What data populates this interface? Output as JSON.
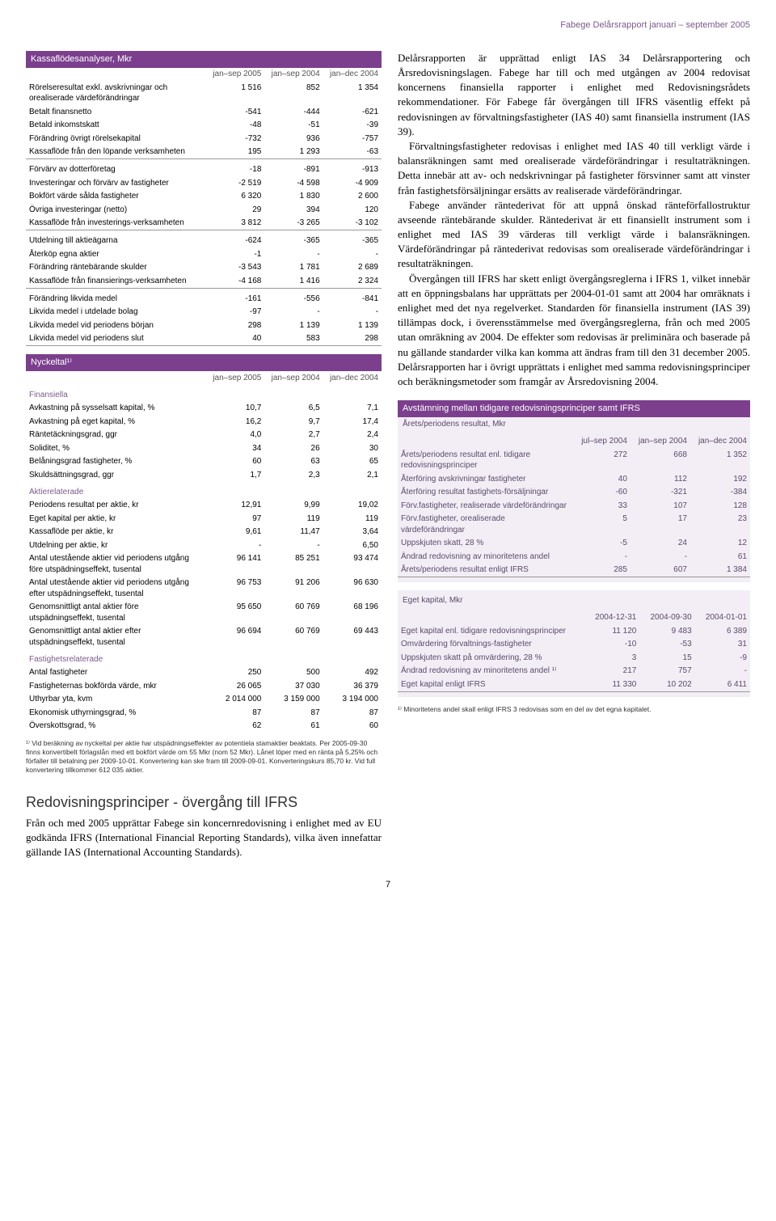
{
  "header": "Fabege Delårsrapport januari – september 2005",
  "page_number": "7",
  "cashflow": {
    "title": "Kassaflödesanalyser, Mkr",
    "cols": [
      "jan–sep 2005",
      "jan–sep 2004",
      "jan–dec 2004"
    ],
    "rows": [
      {
        "label": "Rörelseresultat exkl. avskrivningar och orealiserade värdeförändringar",
        "v": [
          "1 516",
          "852",
          "1 354"
        ]
      },
      {
        "label": "Betalt finansnetto",
        "v": [
          "-541",
          "-444",
          "-621"
        ]
      },
      {
        "label": "Betald inkomstskatt",
        "v": [
          "-48",
          "-51",
          "-39"
        ]
      },
      {
        "label": "Förändring övrigt rörelsekapital",
        "v": [
          "-732",
          "936",
          "-757"
        ]
      },
      {
        "label": "Kassaflöde från den löpande verksamheten",
        "v": [
          "195",
          "1 293",
          "-63"
        ],
        "rule": true
      },
      {
        "label": "Förvärv av dotterföretag",
        "v": [
          "-18",
          "-891",
          "-913"
        ],
        "gap": true
      },
      {
        "label": "Investeringar och förvärv av fastigheter",
        "v": [
          "-2 519",
          "-4 598",
          "-4 909"
        ]
      },
      {
        "label": "Bokfört värde sålda fastigheter",
        "v": [
          "6 320",
          "1 830",
          "2 600"
        ]
      },
      {
        "label": "Övriga investeringar (netto)",
        "v": [
          "29",
          "394",
          "120"
        ]
      },
      {
        "label": "Kassaflöde från investerings-verksamheten",
        "v": [
          "3 812",
          "-3 265",
          "-3 102"
        ],
        "rule": true
      },
      {
        "label": "Utdelning till aktieägarna",
        "v": [
          "-624",
          "-365",
          "-365"
        ],
        "gap": true
      },
      {
        "label": "Återköp egna aktier",
        "v": [
          "-1",
          "-",
          "-"
        ]
      },
      {
        "label": "Förändring räntebärande skulder",
        "v": [
          "-3 543",
          "1 781",
          "2 689"
        ]
      },
      {
        "label": "Kassaflöde från finansierings-verksamheten",
        "v": [
          "-4 168",
          "1 416",
          "2 324"
        ],
        "rule": true
      },
      {
        "label": "Förändring likvida medel",
        "v": [
          "-161",
          "-556",
          "-841"
        ],
        "gap": true
      },
      {
        "label": "Likvida medel i utdelade bolag",
        "v": [
          "-97",
          "-",
          "-"
        ]
      },
      {
        "label": "Likvida medel vid periodens början",
        "v": [
          "298",
          "1 139",
          "1 139"
        ]
      },
      {
        "label": "Likvida medel vid periodens slut",
        "v": [
          "40",
          "583",
          "298"
        ],
        "rule": true
      }
    ]
  },
  "ratios": {
    "title": "Nyckeltal¹⁾",
    "cols": [
      "jan–sep 2005",
      "jan–sep 2004",
      "jan–dec 2004"
    ],
    "groups": [
      {
        "head": "Finansiella",
        "rows": [
          {
            "label": "Avkastning på sysselsatt kapital, %",
            "v": [
              "10,7",
              "6,5",
              "7,1"
            ]
          },
          {
            "label": "Avkastning på eget kapital, %",
            "v": [
              "16,2",
              "9,7",
              "17,4"
            ]
          },
          {
            "label": "Räntetäckningsgrad, ggr",
            "v": [
              "4,0",
              "2,7",
              "2,4"
            ]
          },
          {
            "label": "Soliditet, %",
            "v": [
              "34",
              "26",
              "30"
            ]
          },
          {
            "label": "Belåningsgrad fastigheter, %",
            "v": [
              "60",
              "63",
              "65"
            ]
          },
          {
            "label": "Skuldsättningsgrad, ggr",
            "v": [
              "1,7",
              "2,3",
              "2,1"
            ]
          }
        ]
      },
      {
        "head": "Aktierelaterade",
        "rows": [
          {
            "label": "Periodens resultat per aktie, kr",
            "v": [
              "12,91",
              "9,99",
              "19,02"
            ]
          },
          {
            "label": "Eget kapital per aktie, kr",
            "v": [
              "97",
              "119",
              "119"
            ]
          },
          {
            "label": "Kassaflöde per aktie, kr",
            "v": [
              "9,61",
              "11,47",
              "3,64"
            ]
          },
          {
            "label": "Utdelning per aktie, kr",
            "v": [
              "-",
              "-",
              "6,50"
            ]
          },
          {
            "label": "Antal utestående aktier vid periodens utgång före utspädningseffekt, tusental",
            "v": [
              "96 141",
              "85 251",
              "93 474"
            ]
          },
          {
            "label": "Antal utestående aktier vid periodens utgång efter utspädningseffekt, tusental",
            "v": [
              "96 753",
              "91 206",
              "96 630"
            ]
          },
          {
            "label": "Genomsnittligt antal aktier före utspädningseffekt, tusental",
            "v": [
              "95 650",
              "60 769",
              "68 196"
            ]
          },
          {
            "label": "Genomsnittligt antal aktier efter utspädningseffekt, tusental",
            "v": [
              "96 694",
              "60 769",
              "69 443"
            ]
          }
        ]
      },
      {
        "head": "Fastighetsrelaterade",
        "rows": [
          {
            "label": "Antal fastigheter",
            "v": [
              "250",
              "500",
              "492"
            ]
          },
          {
            "label": "Fastigheternas bokförda värde, mkr",
            "v": [
              "26 065",
              "37 030",
              "36 379"
            ]
          },
          {
            "label": "Uthyrbar yta, kvm",
            "v": [
              "2 014 000",
              "3 159 000",
              "3 194 000"
            ]
          },
          {
            "label": "Ekonomisk uthyrningsgrad, %",
            "v": [
              "87",
              "87",
              "87"
            ]
          },
          {
            "label": "Överskottsgrad, %",
            "v": [
              "62",
              "61",
              "60"
            ]
          }
        ]
      }
    ],
    "footnote": "¹⁾ Vid beräkning av nyckeltal per aktie har utspädningseffekter av potentiela stamaktier beaktats. Per 2005-09-30 finns konvertibelt förlagslån med ett bokfört värde om 55 Mkr (nom 52 Mkr). Lånet löper med en ränta på 5,25% och förfaller till betalning per 2009-10-01. Konvertering kan ske fram till 2009-09-01. Konverteringskurs 85,70 kr. Vid full konvertering tillkommer 612 035 aktier."
  },
  "ifrs_heading": "Redovisningsprinciper - övergång till IFRS",
  "ifrs_intro": "Från och med 2005 upprättar Fabege sin koncernredovisning i enlighet med av EU godkända IFRS (International Financial Reporting Standards), vilka även innefattar gällande IAS (International Accounting Standards).",
  "right_text": [
    "Delårsrapporten är upprättad enligt IAS 34 Delårsrapportering och Årsredovisningslagen. Fabege har till och med utgången av 2004 redovisat koncernens finansiella rapporter i enlighet med Redovisningsrådets rekommendationer. För Fabege får övergången till IFRS väsentlig effekt på redovisningen av förvaltningsfastigheter (IAS 40) samt finansiella instrument (IAS 39).",
    "Förvaltningsfastigheter redovisas i enlighet med IAS 40 till verkligt värde i balansräkningen samt med orealiserade värdeförändringar i resultaträkningen. Detta innebär att av- och nedskrivningar på fastigheter försvinner samt att vinster från fastighetsförsäljningar ersätts av realiserade värdeförändringar.",
    "Fabege använder räntederivat för att uppnå önskad ränteförfallostruktur avseende räntebärande skulder. Räntederivat är ett finansiellt instrument som i enlighet med IAS 39 värderas till verkligt värde i balansräkningen. Värdeförändringar på räntederivat redovisas som orealiserade värdeförändringar i resultaträkningen.",
    "Övergången till IFRS har skett enligt övergångsreglerna i IFRS 1, vilket innebär att en öppningsbalans har upprättats per 2004-01-01 samt att 2004 har omräknats i enlighet med det nya regelverket. Standarden för finansiella instrument (IAS 39) tillämpas dock, i överensstämmelse med övergångsreglerna, från och med 2005 utan omräkning av 2004. De effekter som redovisas är preliminära och baserade på nu gällande standarder vilka kan komma att ändras fram till den 31 december 2005. Delårsrapporten har i övrigt upprättats i enlighet med samma redovisningsprinciper och beräkningsmetoder som framgår av Årsredovisning 2004."
  ],
  "reconcile": {
    "title": "Avstämning mellan tidigare redovisningsprinciper samt IFRS",
    "sub1": {
      "subtitle": "Årets/periodens resultat, Mkr",
      "cols": [
        "jul–sep 2004",
        "jan–sep 2004",
        "jan–dec 2004"
      ],
      "rows": [
        {
          "label": "Årets/periodens resultat enl. tidigare redovisningsprinciper",
          "v": [
            "272",
            "668",
            "1 352"
          ]
        },
        {
          "label": "Återföring avskrivningar fastigheter",
          "v": [
            "40",
            "112",
            "192"
          ]
        },
        {
          "label": "Återföring resultat fastighets-försäljningar",
          "v": [
            "-60",
            "-321",
            "-384"
          ]
        },
        {
          "label": "Förv.fastigheter, realiserade värdeförändringar",
          "v": [
            "33",
            "107",
            "128"
          ]
        },
        {
          "label": "Förv.fastigheter, orealiserade värdeförändringar",
          "v": [
            "5",
            "17",
            "23"
          ]
        },
        {
          "label": "Uppskjuten skatt, 28 %",
          "v": [
            "-5",
            "24",
            "12"
          ]
        },
        {
          "label": "Ändrad redovisning av minoritetens andel",
          "v": [
            "-",
            "-",
            "61"
          ]
        },
        {
          "label": "Årets/periodens resultat enligt IFRS",
          "v": [
            "285",
            "607",
            "1 384"
          ],
          "rule": true
        }
      ]
    },
    "sub2": {
      "subtitle": "Eget kapital, Mkr",
      "cols": [
        "2004-12-31",
        "2004-09-30",
        "2004-01-01"
      ],
      "rows": [
        {
          "label": "Eget kapital enl. tidigare redovisningsprinciper",
          "v": [
            "11 120",
            "9 483",
            "6 389"
          ]
        },
        {
          "label": "Omvärdering förvaltnings-fastigheter",
          "v": [
            "-10",
            "-53",
            "31"
          ]
        },
        {
          "label": "Uppskjuten skatt på omvärdering, 28 %",
          "v": [
            "3",
            "15",
            "-9"
          ]
        },
        {
          "label": "Ändrad redovisning av minoritetens andel ¹⁾",
          "v": [
            "217",
            "757",
            "-"
          ]
        },
        {
          "label": "Eget kapital enligt IFRS",
          "v": [
            "11 330",
            "10 202",
            "6 411"
          ],
          "rule": true
        }
      ]
    },
    "footnote": "¹⁾ Minoritetens andel skall enligt IFRS 3 redovisas som en del av det egna kapitalet."
  }
}
